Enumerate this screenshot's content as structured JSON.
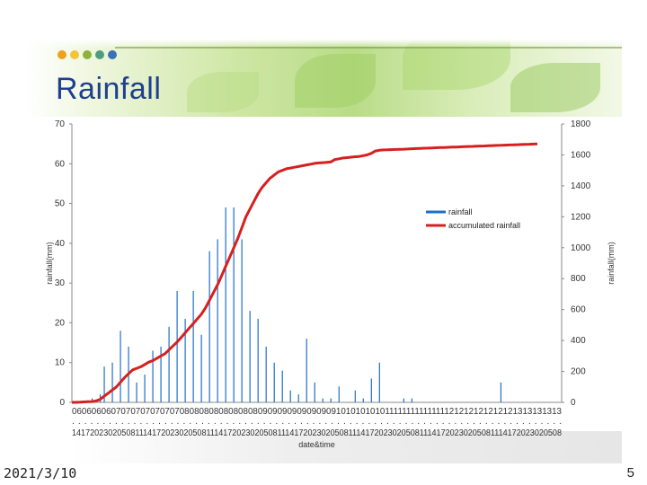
{
  "slide": {
    "title": "Rainfall",
    "date": "2021/3/10",
    "page_number": "5",
    "dot_colors": [
      "#f0a11c",
      "#f3c33a",
      "#8fb33a",
      "#4f9d7f",
      "#3f6fb6"
    ]
  },
  "chart_data": {
    "type": "bar",
    "title": "",
    "xlabel": "date&time",
    "ylabel": "rainfall(mm)",
    "y2label": "rainfall(mm)",
    "ylim": [
      0,
      70
    ],
    "y2lim": [
      0,
      1800
    ],
    "yticks": [
      0,
      10,
      20,
      30,
      40,
      50,
      60,
      70
    ],
    "y2ticks": [
      0,
      200,
      400,
      600,
      800,
      1000,
      1200,
      1400,
      1600,
      1800
    ],
    "xticks_row1": "060606060707070707070708080808080808080909090909090909101010101011111111111111121212121212121313131313",
    "xticks_row2": "14172023020508111417202302050811141720230205081114172023020508111417202302050811141720230205081114172023020508",
    "legend": {
      "position": "right",
      "bar_label": "rainfall",
      "line_label": "accumulated rainfall"
    },
    "colors": {
      "bar": "#1f6fc9",
      "line": "#d62020"
    },
    "rainfall": [
      0,
      0,
      0,
      0,
      0.5,
      1,
      0,
      2,
      9,
      0,
      10,
      0,
      18,
      0,
      14,
      0,
      5,
      0,
      7,
      0,
      13,
      0,
      14,
      0,
      19,
      0,
      28,
      0,
      21,
      0,
      28,
      0,
      17,
      0,
      38,
      0,
      41,
      0,
      49,
      0,
      49,
      0,
      41,
      0,
      23,
      0,
      21,
      0,
      14,
      0,
      10,
      0,
      8,
      0,
      3,
      0,
      2,
      0,
      16,
      0,
      5,
      0,
      1,
      0,
      1,
      0,
      4,
      0,
      0,
      0,
      3,
      0,
      1,
      0,
      6,
      0,
      10,
      0,
      0,
      0,
      0,
      0,
      1,
      0,
      1,
      0,
      0,
      0,
      0,
      0,
      0,
      0,
      0,
      0,
      0,
      0,
      0,
      0,
      0,
      0,
      0,
      0,
      0,
      0,
      0,
      0,
      5,
      0,
      0,
      0,
      0,
      0,
      0,
      0,
      0,
      0,
      0,
      0,
      0,
      0,
      0,
      0
    ],
    "accumulated": [
      0,
      0,
      1,
      3,
      4,
      5,
      10,
      20,
      40,
      60,
      80,
      100,
      130,
      160,
      185,
      210,
      220,
      230,
      245,
      260,
      270,
      285,
      300,
      315,
      340,
      365,
      390,
      420,
      450,
      480,
      510,
      540,
      570,
      610,
      660,
      710,
      760,
      820,
      880,
      940,
      1000,
      1060,
      1130,
      1200,
      1250,
      1300,
      1350,
      1390,
      1420,
      1450,
      1470,
      1490,
      1500,
      1510,
      1515,
      1520,
      1525,
      1530,
      1535,
      1540,
      1545,
      1548,
      1550,
      1552,
      1555,
      1570,
      1575,
      1580,
      1582,
      1585,
      1588,
      1590,
      1595,
      1600,
      1610,
      1625,
      1630,
      1632,
      1633,
      1634,
      1635,
      1636,
      1637,
      1638,
      1640,
      1641,
      1642,
      1643,
      1644,
      1645,
      1646,
      1647,
      1648,
      1649,
      1650,
      1651,
      1652,
      1653,
      1654,
      1655,
      1656,
      1657,
      1658,
      1659,
      1660,
      1661,
      1662,
      1663,
      1664,
      1665,
      1666,
      1667,
      1668,
      1669,
      1670,
      1671
    ]
  }
}
